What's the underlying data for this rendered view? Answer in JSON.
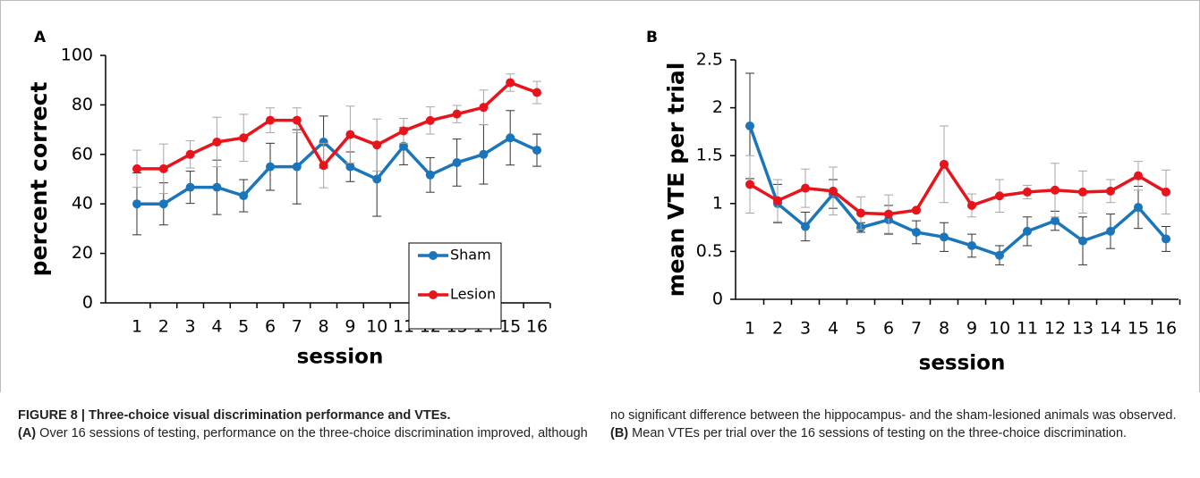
{
  "chart_data": [
    {
      "type": "line",
      "panel": "A",
      "ylabel": "percent correct",
      "xlabel": "session",
      "categories": [
        "1",
        "2",
        "3",
        "4",
        "5",
        "6",
        "7",
        "8",
        "9",
        "10",
        "11",
        "12",
        "13",
        "14",
        "15",
        "16"
      ],
      "ylim": [
        0,
        100
      ],
      "yticks": [
        0,
        20,
        40,
        60,
        80,
        100
      ],
      "legend": "lower right",
      "error_bars": true,
      "series": [
        {
          "name": "Sham",
          "color": "#1b75bb",
          "error_color": "#333333",
          "values": [
            40,
            40,
            46.7,
            46.7,
            43.3,
            55,
            55,
            65,
            55,
            50,
            63.3,
            51.7,
            56.7,
            60,
            66.7,
            61.7
          ],
          "errors": [
            12.5,
            8.5,
            6.5,
            11,
            6.5,
            9.5,
            15,
            10.5,
            6,
            15,
            7.5,
            7,
            9.5,
            12,
            11,
            6.5
          ]
        },
        {
          "name": "Lesion",
          "color": "#e8141b",
          "error_color": "#a6a6a6",
          "values": [
            54.2,
            54.2,
            60,
            65,
            66.7,
            73.8,
            73.8,
            55.5,
            68,
            63.8,
            69.5,
            73.7,
            76.3,
            79,
            89,
            85
          ],
          "errors": [
            7.5,
            10,
            5.5,
            10,
            9.5,
            5,
            5,
            9,
            11.5,
            10.5,
            5,
            5.5,
            3.5,
            7,
            3.5,
            4.5
          ]
        }
      ]
    },
    {
      "type": "line",
      "panel": "B",
      "ylabel": "mean VTE per trial",
      "xlabel": "session",
      "categories": [
        "1",
        "2",
        "3",
        "4",
        "5",
        "6",
        "7",
        "8",
        "9",
        "10",
        "11",
        "12",
        "13",
        "14",
        "15",
        "16"
      ],
      "ylim": [
        0,
        2.5
      ],
      "yticks": [
        0,
        0.5,
        1,
        1.5,
        2,
        2.5
      ],
      "error_bars": true,
      "series": [
        {
          "color": "#1b75bb",
          "error_color": "#333333",
          "values": [
            1.81,
            1.0,
            0.76,
            1.1,
            0.75,
            0.83,
            0.7,
            0.65,
            0.56,
            0.46,
            0.71,
            0.82,
            0.61,
            0.71,
            0.96,
            0.63
          ],
          "errors": [
            0.55,
            0.2,
            0.15,
            0.15,
            0.05,
            0.15,
            0.12,
            0.15,
            0.12,
            0.1,
            0.15,
            0.1,
            0.25,
            0.18,
            0.22,
            0.13
          ]
        },
        {
          "color": "#e8141b",
          "error_color": "#a6a6a6",
          "values": [
            1.2,
            1.03,
            1.16,
            1.13,
            0.9,
            0.89,
            0.93,
            1.41,
            0.98,
            1.08,
            1.12,
            1.14,
            1.12,
            1.13,
            1.29,
            1.12
          ],
          "errors": [
            0.3,
            0.22,
            0.2,
            0.25,
            0.17,
            0.2,
            0.02,
            0.4,
            0.12,
            0.17,
            0.07,
            0.28,
            0.22,
            0.12,
            0.15,
            0.23
          ]
        }
      ]
    }
  ],
  "caption": {
    "title": "FIGURE 8 | Three-choice visual discrimination performance and VTEs.",
    "panel_a_label": "(A)",
    "panel_a_text": "Over 16 sessions of testing, performance on the three-choice discrimination improved, although no significant difference between the hippocampus- and the sham-lesioned animals was observed.",
    "panel_b_label": "(B)",
    "panel_b_text": "Mean VTEs per trial over the 16 sessions of testing on the three-choice discrimination."
  }
}
